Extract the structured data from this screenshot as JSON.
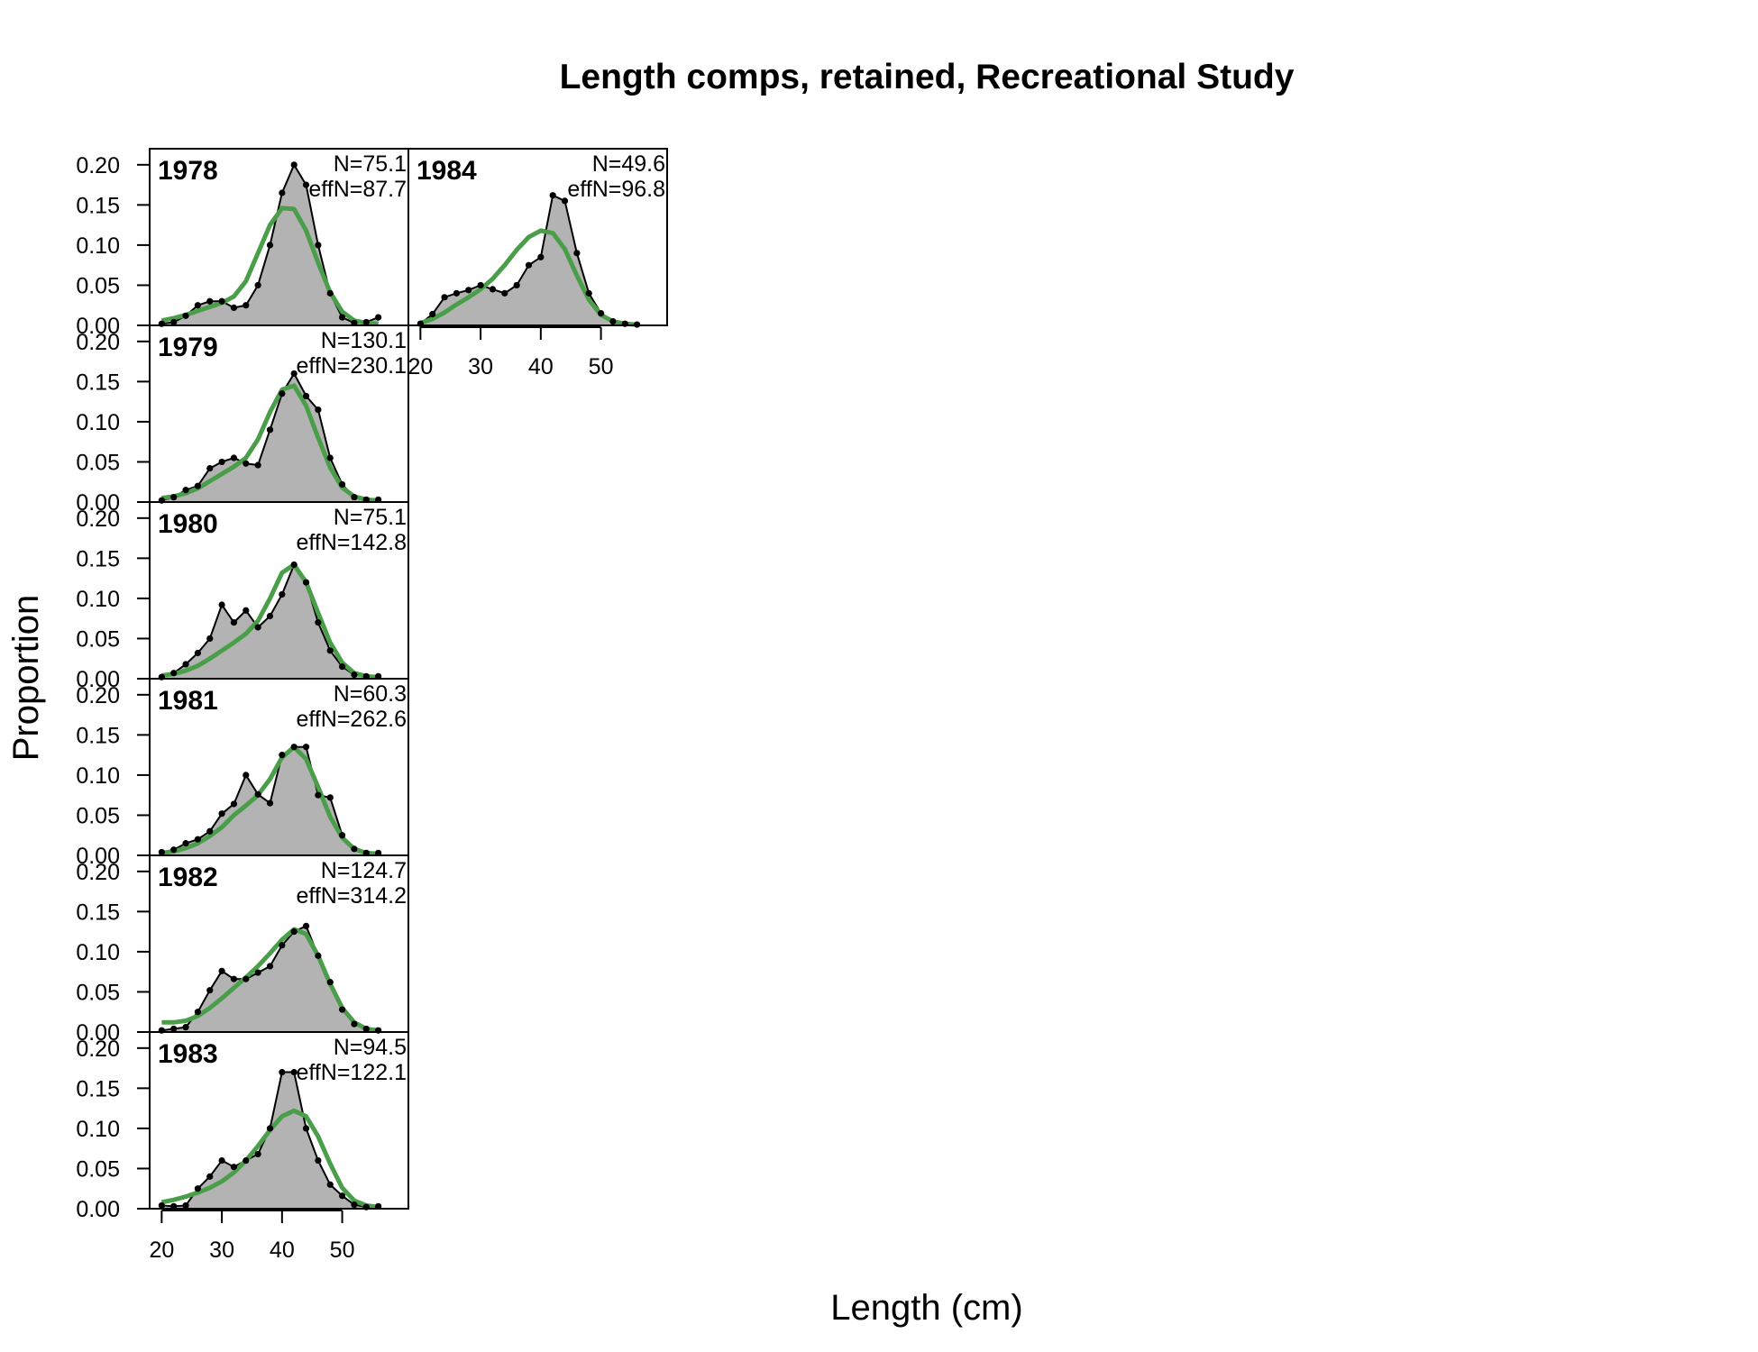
{
  "chart_data": {
    "type": "area",
    "title": "Length comps, retained, Recreational Study",
    "xlabel": "Length (cm)",
    "ylabel": "Proportion",
    "xlim": [
      18,
      61
    ],
    "ylim": [
      0,
      0.22
    ],
    "x_ticks": [
      "20",
      "30",
      "40",
      "50"
    ],
    "x_tick_values": [
      20,
      30,
      40,
      50
    ],
    "y_ticks": [
      "0.00",
      "0.05",
      "0.10",
      "0.15",
      "0.20"
    ],
    "y_tick_values": [
      0,
      0.05,
      0.1,
      0.15,
      0.2
    ],
    "colors": {
      "observed_fill": "#b3b3b3",
      "observed_line": "#000000",
      "expected_line": "#4a9e4a"
    },
    "x": [
      20,
      22,
      24,
      26,
      28,
      30,
      32,
      34,
      36,
      38,
      40,
      42,
      44,
      46,
      48,
      50,
      52,
      54,
      56
    ],
    "panels": [
      {
        "year": "1978",
        "n_label": "N=75.1",
        "effn_label": "effN=87.7",
        "observed": [
          0.002,
          0.004,
          0.012,
          0.025,
          0.03,
          0.03,
          0.022,
          0.025,
          0.05,
          0.1,
          0.165,
          0.2,
          0.175,
          0.1,
          0.04,
          0.01,
          0.003,
          0.004,
          0.01
        ],
        "expected": [
          0.006,
          0.009,
          0.013,
          0.018,
          0.023,
          0.028,
          0.036,
          0.055,
          0.09,
          0.125,
          0.146,
          0.145,
          0.118,
          0.078,
          0.041,
          0.017,
          0.006,
          0.003,
          0.002
        ]
      },
      {
        "year": "1979",
        "n_label": "N=130.1",
        "effn_label": "effN=230.1",
        "observed": [
          0.002,
          0.006,
          0.015,
          0.02,
          0.042,
          0.05,
          0.055,
          0.048,
          0.046,
          0.09,
          0.135,
          0.16,
          0.132,
          0.115,
          0.055,
          0.022,
          0.006,
          0.003,
          0.003
        ],
        "expected": [
          0.005,
          0.007,
          0.011,
          0.017,
          0.026,
          0.035,
          0.044,
          0.055,
          0.078,
          0.112,
          0.14,
          0.145,
          0.12,
          0.08,
          0.043,
          0.018,
          0.007,
          0.003,
          0.002
        ]
      },
      {
        "year": "1980",
        "n_label": "N=75.1",
        "effn_label": "effN=142.8",
        "observed": [
          0.002,
          0.007,
          0.018,
          0.032,
          0.05,
          0.092,
          0.07,
          0.085,
          0.064,
          0.078,
          0.105,
          0.142,
          0.12,
          0.07,
          0.035,
          0.015,
          0.005,
          0.003,
          0.003
        ],
        "expected": [
          0.004,
          0.006,
          0.01,
          0.016,
          0.025,
          0.035,
          0.045,
          0.056,
          0.072,
          0.1,
          0.132,
          0.142,
          0.12,
          0.082,
          0.045,
          0.02,
          0.007,
          0.003,
          0.002
        ]
      },
      {
        "year": "1981",
        "n_label": "N=60.3",
        "effn_label": "effN=262.6",
        "observed": [
          0.004,
          0.007,
          0.015,
          0.02,
          0.03,
          0.052,
          0.064,
          0.1,
          0.076,
          0.065,
          0.125,
          0.135,
          0.135,
          0.075,
          0.072,
          0.025,
          0.008,
          0.003,
          0.003
        ],
        "expected": [
          0.003,
          0.005,
          0.009,
          0.015,
          0.024,
          0.035,
          0.05,
          0.062,
          0.075,
          0.095,
          0.122,
          0.135,
          0.12,
          0.085,
          0.048,
          0.022,
          0.008,
          0.003,
          0.002
        ]
      },
      {
        "year": "1982",
        "n_label": "N=124.7",
        "effn_label": "effN=314.2",
        "observed": [
          0.002,
          0.004,
          0.006,
          0.025,
          0.052,
          0.076,
          0.066,
          0.066,
          0.074,
          0.082,
          0.108,
          0.125,
          0.132,
          0.095,
          0.062,
          0.028,
          0.01,
          0.004,
          0.002
        ],
        "expected": [
          0.012,
          0.012,
          0.014,
          0.02,
          0.03,
          0.042,
          0.055,
          0.068,
          0.082,
          0.098,
          0.115,
          0.128,
          0.122,
          0.095,
          0.06,
          0.03,
          0.012,
          0.004,
          0.002
        ]
      },
      {
        "year": "1983",
        "n_label": "N=94.5",
        "effn_label": "effN=122.1",
        "observed": [
          0.004,
          0.003,
          0.004,
          0.025,
          0.04,
          0.06,
          0.052,
          0.06,
          0.068,
          0.1,
          0.17,
          0.17,
          0.1,
          0.06,
          0.03,
          0.016,
          0.005,
          0.002,
          0.003
        ],
        "expected": [
          0.008,
          0.011,
          0.015,
          0.02,
          0.026,
          0.034,
          0.045,
          0.06,
          0.078,
          0.098,
          0.115,
          0.122,
          0.115,
          0.09,
          0.056,
          0.026,
          0.01,
          0.004,
          0.002
        ]
      },
      {
        "year": "1984",
        "n_label": "N=49.6",
        "effn_label": "effN=96.8",
        "observed": [
          0.002,
          0.014,
          0.035,
          0.04,
          0.044,
          0.05,
          0.045,
          0.04,
          0.05,
          0.075,
          0.085,
          0.162,
          0.155,
          0.09,
          0.04,
          0.015,
          0.005,
          0.002,
          0.001
        ],
        "expected": [
          0.003,
          0.008,
          0.016,
          0.026,
          0.035,
          0.045,
          0.058,
          0.075,
          0.094,
          0.11,
          0.118,
          0.115,
          0.095,
          0.062,
          0.032,
          0.013,
          0.005,
          0.002,
          0.001
        ]
      }
    ]
  }
}
